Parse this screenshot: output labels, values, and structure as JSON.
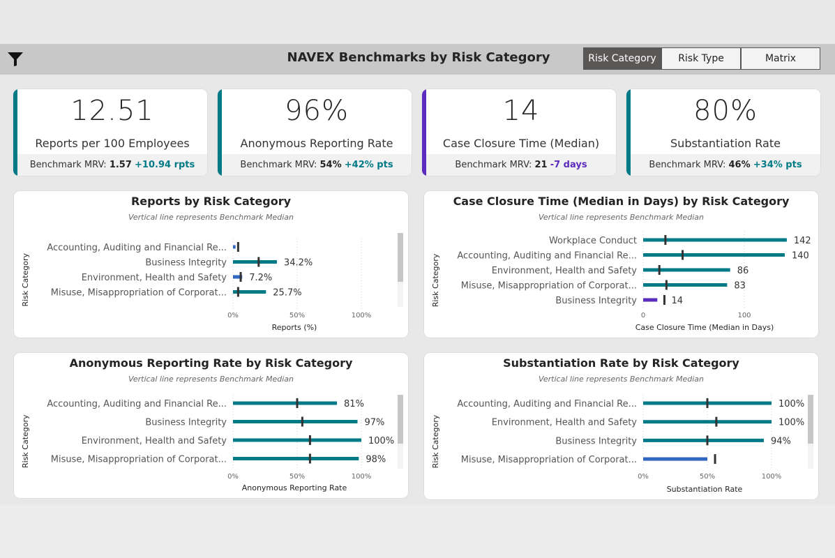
{
  "header": {
    "title": "NAVEX Benchmarks by Risk Category",
    "filter_icon": "filter-icon",
    "tabs": [
      {
        "label": "Risk Category",
        "active": true
      },
      {
        "label": "Risk Type",
        "active": false
      },
      {
        "label": "Matrix",
        "active": false
      }
    ]
  },
  "kpis": [
    {
      "value": "12.51",
      "label": "Reports per 100 Employees",
      "bench_prefix": "Benchmark MRV:",
      "bench_value": "1.57",
      "delta": "+10.94 rpts",
      "accent": "#007A87",
      "delta_color": "#007A87"
    },
    {
      "value": "96%",
      "label": "Anonymous Reporting Rate",
      "bench_prefix": "Benchmark MRV:",
      "bench_value": "54%",
      "delta": "+42% pts",
      "accent": "#007A87",
      "delta_color": "#007A87"
    },
    {
      "value": "14",
      "label": "Case Closure Time (Median)",
      "bench_prefix": "Benchmark MRV:",
      "bench_value": "21",
      "delta": "-7 days",
      "accent": "#5B2BBE",
      "delta_color": "#5B2BBE"
    },
    {
      "value": "80%",
      "label": "Substantiation Rate",
      "bench_prefix": "Benchmark MRV:",
      "bench_value": "46%",
      "delta": "+34% pts",
      "accent": "#007A87",
      "delta_color": "#007A87"
    }
  ],
  "colors": {
    "above": "#007A87",
    "below": "#2F67C1",
    "better": "#5B2BBE",
    "benchmark": "#333333"
  },
  "chart_data": [
    {
      "type": "bar",
      "title": "Reports by Risk Category",
      "subtitle": "Vertical line represents Benchmark Median",
      "xlabel": "Reports (%)",
      "ylabel": "Risk Category",
      "xticks": [
        "0%",
        "50%",
        "100%"
      ],
      "xtick_values": [
        0,
        50,
        100
      ],
      "categories": [
        "Accounting, Auditing and Financial Re...",
        "Business Integrity",
        "Environment, Health and Safety",
        "Misuse, Misappropriation of Corporat..."
      ],
      "values": [
        2,
        34.2,
        7.2,
        25.7
      ],
      "labels": [
        "",
        "34.2%",
        "7.2%",
        "25.7%"
      ],
      "benchmark": [
        4,
        20,
        6,
        4
      ],
      "bar_colors": [
        "below",
        "above",
        "below",
        "above"
      ],
      "scrollbar": true
    },
    {
      "type": "bar",
      "title": "Case Closure Time (Median in Days) by Risk Category",
      "subtitle": "Vertical line represents Benchmark Median",
      "xlabel": "Case Closure Time (Median in Days)",
      "ylabel": "Risk Category",
      "xticks": [
        "0",
        "100"
      ],
      "xtick_values": [
        0,
        100
      ],
      "categories": [
        "Workplace Conduct",
        "Accounting, Auditing and Financial Re...",
        "Environment, Health and Safety",
        "Misuse, Misappropriation of Corporat...",
        "Business Integrity"
      ],
      "values": [
        142,
        140,
        86,
        83,
        14
      ],
      "labels": [
        "142",
        "140",
        "86",
        "83",
        "14"
      ],
      "benchmark": [
        22,
        39,
        16,
        23,
        21
      ],
      "bar_colors": [
        "above",
        "above",
        "above",
        "above",
        "better"
      ],
      "scrollbar": false
    },
    {
      "type": "bar",
      "title": "Anonymous Reporting Rate by Risk Category",
      "subtitle": "Vertical line represents Benchmark Median",
      "xlabel": "Anonymous Reporting Rate",
      "ylabel": "Risk Category",
      "xticks": [
        "0%",
        "50%",
        "100%"
      ],
      "xtick_values": [
        0,
        50,
        100
      ],
      "categories": [
        "Accounting, Auditing and Financial Re...",
        "Business Integrity",
        "Environment, Health and Safety",
        "Misuse, Misappropriation of Corporat..."
      ],
      "values": [
        81,
        97,
        100,
        98
      ],
      "labels": [
        "81%",
        "97%",
        "100%",
        "98%"
      ],
      "benchmark": [
        50,
        54,
        60,
        60
      ],
      "bar_colors": [
        "above",
        "above",
        "above",
        "above"
      ],
      "scrollbar": true
    },
    {
      "type": "bar",
      "title": "Substantiation Rate by Risk Category",
      "subtitle": "Vertical line represents Benchmark Median",
      "xlabel": "Substantiation Rate",
      "ylabel": "Risk Category",
      "xticks": [
        "0%",
        "50%",
        "100%"
      ],
      "xtick_values": [
        0,
        50,
        100
      ],
      "categories": [
        "Accounting, Auditing and Financial Re...",
        "Environment, Health and Safety",
        "Business Integrity",
        "Misuse, Misappropriation of Corporat..."
      ],
      "values": [
        100,
        100,
        94,
        50
      ],
      "labels": [
        "100%",
        "100%",
        "94%",
        ""
      ],
      "benchmark": [
        50,
        57,
        50,
        56
      ],
      "bar_colors": [
        "above",
        "above",
        "above",
        "below"
      ],
      "scrollbar": true
    }
  ]
}
